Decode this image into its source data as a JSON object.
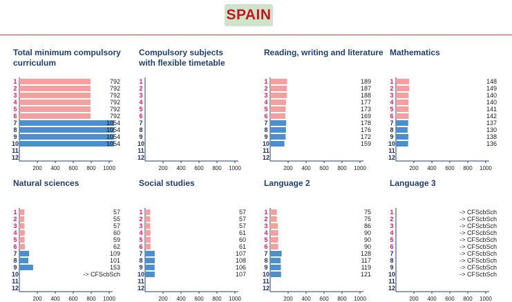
{
  "country": "SPAIN",
  "colors": {
    "primary_bar": "#f2a0a0",
    "secondary_bar": "#4d8fcc",
    "primary_grade": "#e0155e",
    "secondary_grade": "#1b2a5c",
    "axis": "#1f3f73"
  },
  "grades": [
    "1",
    "2",
    "3",
    "4",
    "5",
    "6",
    "7",
    "8",
    "9",
    "10",
    "11",
    "12"
  ],
  "chart_data": [
    {
      "type": "bar",
      "orientation": "horizontal",
      "title": "Total minimum compulsory curriculum",
      "categories": [
        "1",
        "2",
        "3",
        "4",
        "5",
        "6",
        "7",
        "8",
        "9",
        "10",
        "11",
        "12"
      ],
      "values": [
        792,
        792,
        792,
        792,
        792,
        792,
        1054,
        1054,
        1054,
        1054,
        null,
        null
      ],
      "value_labels": [
        "792",
        "792",
        "792",
        "792",
        "792",
        "792",
        "1054",
        "1054",
        "1054",
        "1054",
        "",
        ""
      ],
      "xlim": [
        0,
        1000
      ],
      "xticks": [
        200,
        400,
        600,
        800,
        1000
      ]
    },
    {
      "type": "bar",
      "orientation": "horizontal",
      "title": "Compulsory subjects with flexible timetable",
      "categories": [
        "1",
        "2",
        "3",
        "4",
        "5",
        "6",
        "7",
        "8",
        "9",
        "10",
        "11",
        "12"
      ],
      "values": [
        null,
        null,
        null,
        null,
        null,
        null,
        null,
        null,
        null,
        null,
        null,
        null
      ],
      "value_labels": [
        "",
        "",
        "",
        "",
        "",
        "",
        "",
        "",
        "",
        "",
        "",
        ""
      ],
      "xlim": [
        0,
        1000
      ],
      "xticks": [
        200,
        400,
        600,
        800,
        1000
      ]
    },
    {
      "type": "bar",
      "orientation": "horizontal",
      "title": "Reading, writing and literature",
      "categories": [
        "1",
        "2",
        "3",
        "4",
        "5",
        "6",
        "7",
        "8",
        "9",
        "10",
        "11",
        "12"
      ],
      "values": [
        189,
        187,
        188,
        177,
        173,
        169,
        178,
        176,
        172,
        159,
        null,
        null
      ],
      "value_labels": [
        "189",
        "187",
        "188",
        "177",
        "173",
        "169",
        "178",
        "176",
        "172",
        "159",
        "",
        ""
      ],
      "xlim": [
        0,
        1000
      ],
      "xticks": [
        200,
        400,
        600,
        800,
        1000
      ]
    },
    {
      "type": "bar",
      "orientation": "horizontal",
      "title": "Mathematics",
      "categories": [
        "1",
        "2",
        "3",
        "4",
        "5",
        "6",
        "7",
        "8",
        "9",
        "10",
        "11",
        "12"
      ],
      "values": [
        148,
        149,
        140,
        140,
        141,
        142,
        137,
        130,
        138,
        136,
        null,
        null
      ],
      "value_labels": [
        "148",
        "149",
        "140",
        "140",
        "141",
        "142",
        "137",
        "130",
        "138",
        "136",
        "",
        ""
      ],
      "xlim": [
        0,
        1000
      ],
      "xticks": [
        200,
        400,
        600,
        800,
        1000
      ]
    },
    {
      "type": "bar",
      "orientation": "horizontal",
      "title": "Natural sciences",
      "categories": [
        "1",
        "2",
        "3",
        "4",
        "5",
        "6",
        "7",
        "8",
        "9",
        "10",
        "11",
        "12"
      ],
      "values": [
        57,
        55,
        57,
        60,
        59,
        62,
        109,
        101,
        153,
        null,
        null,
        null
      ],
      "value_labels": [
        "57",
        "55",
        "57",
        "60",
        "59",
        "62",
        "109",
        "101",
        "153",
        "-> CFScbSch",
        "",
        ""
      ],
      "xlim": [
        0,
        1000
      ],
      "xticks": [
        200,
        400,
        600,
        800,
        1000
      ]
    },
    {
      "type": "bar",
      "orientation": "horizontal",
      "title": "Social studies",
      "categories": [
        "1",
        "2",
        "3",
        "4",
        "5",
        "6",
        "7",
        "8",
        "9",
        "10",
        "11",
        "12"
      ],
      "values": [
        57,
        57,
        57,
        61,
        60,
        61,
        107,
        108,
        106,
        107,
        null,
        null
      ],
      "value_labels": [
        "57",
        "57",
        "57",
        "61",
        "60",
        "61",
        "107",
        "108",
        "106",
        "107",
        "",
        ""
      ],
      "xlim": [
        0,
        1000
      ],
      "xticks": [
        200,
        400,
        600,
        800,
        1000
      ]
    },
    {
      "type": "bar",
      "orientation": "horizontal",
      "title": "Language 2",
      "categories": [
        "1",
        "2",
        "3",
        "4",
        "5",
        "6",
        "7",
        "8",
        "9",
        "10",
        "11",
        "12"
      ],
      "values": [
        75,
        75,
        86,
        90,
        90,
        90,
        128,
        117,
        119,
        121,
        null,
        null
      ],
      "value_labels": [
        "75",
        "75",
        "86",
        "90",
        "90",
        "90",
        "128",
        "117",
        "119",
        "121",
        "",
        ""
      ],
      "xlim": [
        0,
        1000
      ],
      "xticks": [
        200,
        400,
        600,
        800,
        1000
      ]
    },
    {
      "type": "bar",
      "orientation": "horizontal",
      "title": "Language 3",
      "categories": [
        "1",
        "2",
        "3",
        "4",
        "5",
        "6",
        "7",
        "8",
        "9",
        "10",
        "11",
        "12"
      ],
      "values": [
        null,
        null,
        null,
        null,
        null,
        null,
        null,
        null,
        null,
        null,
        null,
        null
      ],
      "value_labels": [
        "-> CFScbSch",
        "-> CFScbSch",
        "-> CFScbSch",
        "-> CFScbSch",
        "-> CFScbSch",
        "-> CFScbSch",
        "-> CFScbSch",
        "-> CFScbSch",
        "-> CFScbSch",
        "-> CFScbSch",
        "",
        ""
      ],
      "xlim": [
        0,
        1000
      ],
      "xticks": [
        200,
        400,
        600,
        800,
        1000
      ]
    }
  ]
}
